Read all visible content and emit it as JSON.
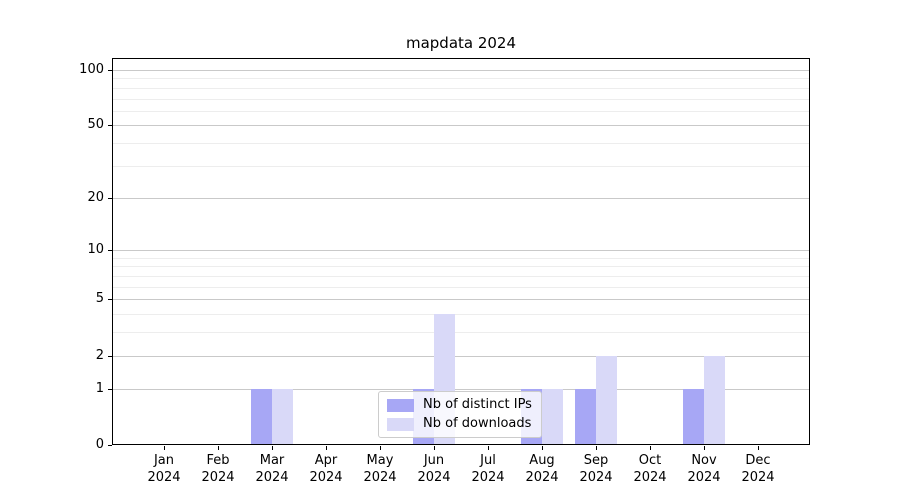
{
  "chart_data": {
    "type": "bar",
    "title": "mapdata 2024",
    "categories": [
      "Jan",
      "Feb",
      "Mar",
      "Apr",
      "May",
      "Jun",
      "Jul",
      "Aug",
      "Sep",
      "Oct",
      "Nov",
      "Dec"
    ],
    "x_year": "2024",
    "series": [
      {
        "name": "Nb of distinct IPs",
        "color": "#a7a7f5",
        "values": [
          0,
          0,
          1,
          0,
          0,
          1,
          0,
          1,
          1,
          0,
          1,
          0
        ]
      },
      {
        "name": "Nb of downloads",
        "color": "#d9d9f8",
        "values": [
          0,
          0,
          1,
          0,
          0,
          4,
          0,
          1,
          2,
          0,
          2,
          0
        ]
      }
    ],
    "yscale": "log1p",
    "ylim": [
      0,
      116
    ],
    "yticks": [
      "0",
      "1",
      "2",
      "5",
      "10",
      "20",
      "50",
      "100"
    ],
    "ytick_values": [
      0,
      1,
      2,
      5,
      10,
      20,
      50,
      100
    ],
    "minor_ytick_values": [
      3,
      4,
      6,
      7,
      8,
      9,
      30,
      40,
      60,
      70,
      80,
      90
    ],
    "grid": true,
    "legend_position": "lower-center-inside",
    "colors": {
      "grid_major": "#c9c9c9",
      "grid_minor": "#ededed",
      "axis": "#000000",
      "legend_border": "#cccccc"
    }
  }
}
